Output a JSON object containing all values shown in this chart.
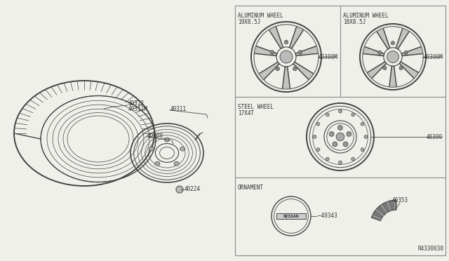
{
  "bg_color": "#f0f0ea",
  "line_color": "#444444",
  "text_color": "#333333",
  "ref_number": "R4330030",
  "sections": {
    "left_panel": {
      "tire_label_1": "40312",
      "tire_label_2": "40312M",
      "stem_label": "40311",
      "wheel_label": "40300",
      "nut_label": "40224"
    },
    "top_left_box": {
      "title_line1": "ALUMINUM WHEEL",
      "title_line2": "19X8.5J",
      "part_label": "40300M"
    },
    "top_right_box": {
      "title_line1": "ALUMINUM WHEEL",
      "title_line2": "18X8.5J",
      "part_label": "40300M"
    },
    "mid_box": {
      "title_line1": "STEEL WHEEL",
      "title_line2": "17X4T",
      "part_label": "40300"
    },
    "bottom_box": {
      "title_line1": "ORNAMENT",
      "nissan_label": "40343",
      "trim_label": "40353"
    }
  }
}
